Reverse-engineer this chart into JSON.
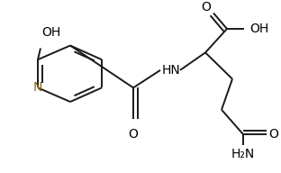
{
  "bg_color": "#ffffff",
  "line_color": "#1a1a1a",
  "figsize": [
    3.12,
    1.92
  ],
  "dpi": 100,
  "xlim": [
    0,
    312
  ],
  "ylim": [
    0,
    192
  ]
}
